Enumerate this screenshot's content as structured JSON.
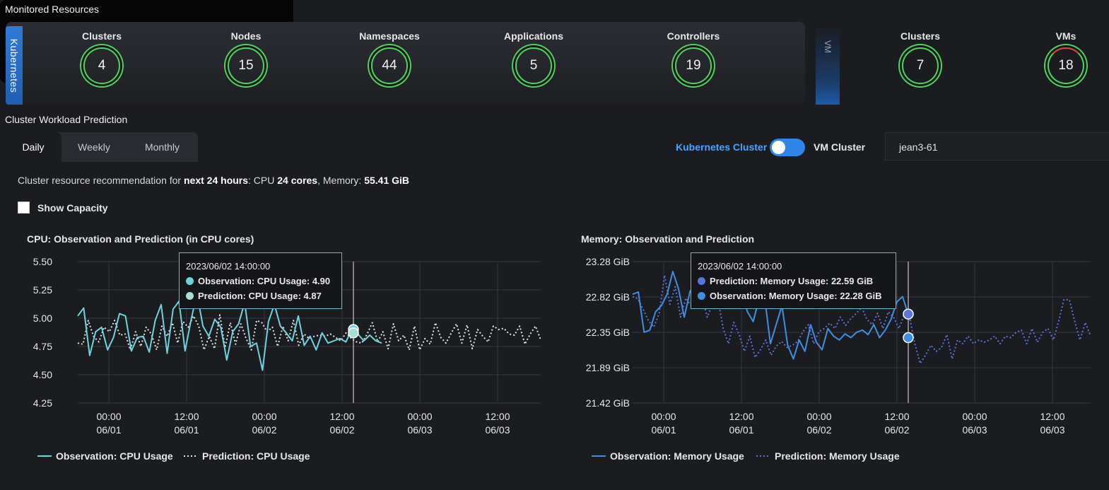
{
  "header": {
    "title": "Monitored Resources"
  },
  "kubernetes": {
    "tab_label": "Kubernetes",
    "stats": [
      {
        "label": "Clusters",
        "value": "4"
      },
      {
        "label": "Nodes",
        "value": "15"
      },
      {
        "label": "Namespaces",
        "value": "44"
      },
      {
        "label": "Applications",
        "value": "5"
      },
      {
        "label": "Controllers",
        "value": "19"
      }
    ]
  },
  "vm": {
    "tab_label": "VM",
    "stats": [
      {
        "label": "Clusters",
        "value": "7"
      },
      {
        "label": "VMs",
        "value": "18"
      }
    ]
  },
  "prediction": {
    "title": "Cluster Workload Prediction",
    "tabs": [
      "Daily",
      "Weekly",
      "Monthly"
    ],
    "active_tab": "Daily",
    "toggle_left": "Kubernetes Cluster",
    "toggle_right": "VM Cluster",
    "cluster_select": "jean3-61",
    "recommendation": {
      "prefix": "Cluster resource recommendation for ",
      "window": "next 24 hours",
      "cpu_prefix": ": CPU ",
      "cpu": "24 cores",
      "mem_prefix": ", Memory: ",
      "memory": "55.41 GiB"
    },
    "show_capacity": "Show Capacity"
  },
  "colors": {
    "cpu_obs": "#6fd3dc",
    "cpu_pred": "#dfe3e6",
    "mem_obs": "#3f8fe0",
    "mem_pred": "#5b74d8",
    "ring": "#4cd35a",
    "accent": "#2f86e6"
  },
  "chart_data": [
    {
      "type": "line",
      "title": "CPU: Observation and Prediction (in CPU cores)",
      "y_ticks": [
        "5.50",
        "5.25",
        "5.00",
        "4.75",
        "4.50",
        "4.25"
      ],
      "ylim": [
        4.25,
        5.5
      ],
      "x_ticks": [
        {
          "time": "00:00",
          "date": "06/01"
        },
        {
          "time": "12:00",
          "date": "06/01"
        },
        {
          "time": "00:00",
          "date": "06/02"
        },
        {
          "time": "12:00",
          "date": "06/02"
        },
        {
          "time": "00:00",
          "date": "06/03"
        },
        {
          "time": "12:00",
          "date": "06/03"
        }
      ],
      "series": [
        {
          "name": "Observation: CPU Usage",
          "style": "solid",
          "values": [
            5.02,
            5.09,
            4.67,
            4.88,
            4.92,
            4.72,
            4.83,
            5.04,
            5.02,
            4.71,
            4.83,
            4.84,
            4.7,
            4.98,
            5.12,
            4.69,
            5.08,
            5.15,
            4.71,
            4.98,
            5.22,
            4.93,
            4.84,
            4.99,
            4.92,
            4.63,
            4.88,
            4.95,
            5.14,
            4.75,
            4.78,
            4.54,
            4.97,
            5.12,
            4.93,
            4.87,
            4.8,
            5.02,
            4.76,
            4.84,
            4.72,
            4.87,
            4.78,
            4.8,
            4.82,
            4.79,
            4.9,
            4.86,
            4.8,
            4.85,
            4.8,
            4.78
          ]
        },
        {
          "name": "Prediction: CPU Usage",
          "style": "dotted",
          "values": [
            4.78,
            4.77,
            4.98,
            4.84,
            4.79,
            4.92,
            4.88,
            4.98,
            4.85,
            4.86,
            4.72,
            4.88,
            4.75,
            4.92,
            4.86,
            4.72,
            4.93,
            4.84,
            4.96,
            4.78,
            4.97,
            4.92,
            5.02,
            4.93,
            4.72,
            4.84,
            4.73,
            5.03,
            4.74,
            4.96,
            4.77,
            4.95,
            4.82,
            4.72,
            4.98,
            4.96,
            4.88,
            4.92,
            4.75,
            4.93,
            4.8,
            4.98,
            4.76,
            4.86,
            4.82,
            4.84,
            4.85,
            4.84,
            4.86,
            4.83,
            4.8,
            4.87,
            4.82,
            4.79,
            4.78,
            4.86,
            4.96,
            4.79,
            4.88,
            4.73,
            4.95,
            4.8,
            4.85,
            4.72,
            4.93,
            4.72,
            4.82,
            4.77,
            4.96,
            4.83,
            4.78,
            4.87,
            4.95,
            4.78,
            4.94,
            4.73,
            4.9,
            4.84,
            4.79,
            4.93,
            4.9,
            4.91,
            4.86,
            4.85,
            4.93,
            4.77,
            4.86,
            4.93,
            4.81
          ]
        }
      ],
      "tooltip": {
        "time": "2023/06/02 14:00:00",
        "rows": [
          {
            "label": "Observation: CPU Usage: ",
            "value": "4.90"
          },
          {
            "label": "Prediction: CPU Usage: ",
            "value": "4.87"
          }
        ]
      },
      "legend": [
        "Observation: CPU Usage",
        "Prediction: CPU Usage"
      ],
      "grid": true
    },
    {
      "type": "line",
      "title": "Memory: Observation and Prediction",
      "y_ticks": [
        "23.28 GiB",
        "22.82 GiB",
        "22.35 GiB",
        "21.89 GiB",
        "21.42 GiB"
      ],
      "ylim": [
        21.42,
        23.28
      ],
      "x_ticks": [
        {
          "time": "00:00",
          "date": "06/01"
        },
        {
          "time": "12:00",
          "date": "06/01"
        },
        {
          "time": "00:00",
          "date": "06/02"
        },
        {
          "time": "12:00",
          "date": "06/02"
        },
        {
          "time": "00:00",
          "date": "06/03"
        },
        {
          "time": "12:00",
          "date": "06/03"
        }
      ],
      "series": [
        {
          "name": "Observation: Memory Usage",
          "style": "solid",
          "values": [
            22.85,
            22.88,
            22.35,
            22.38,
            22.62,
            22.7,
            22.85,
            23.15,
            22.92,
            22.55,
            22.89,
            22.96,
            22.7,
            22.75,
            22.68,
            22.78,
            22.72,
            22.8,
            22.7,
            22.85,
            22.62,
            22.49,
            22.79,
            22.8,
            22.2,
            22.45,
            22.7,
            22.18,
            22.0,
            22.25,
            22.1,
            22.45,
            22.22,
            22.12,
            22.4,
            22.3,
            22.25,
            22.33,
            22.28,
            22.35,
            22.38,
            22.32,
            22.45,
            22.28,
            22.38,
            22.52,
            22.75,
            22.82,
            22.59
          ]
        },
        {
          "name": "Prediction: Memory Usage",
          "style": "dotted",
          "values": [
            22.82,
            22.79,
            22.65,
            22.5,
            22.42,
            22.6,
            23.1,
            22.72,
            22.95,
            22.55,
            22.8,
            22.7,
            22.78,
            22.85,
            22.55,
            22.72,
            22.8,
            22.4,
            22.2,
            22.48,
            22.32,
            22.1,
            22.3,
            22.02,
            22.12,
            22.25,
            22.05,
            22.17,
            22.23,
            22.15,
            22.18,
            22.23,
            22.36,
            22.45,
            22.2,
            22.36,
            22.4,
            22.47,
            22.4,
            22.55,
            22.44,
            22.53,
            22.6,
            22.68,
            22.52,
            22.45,
            22.6,
            22.4,
            22.62,
            22.55,
            22.4,
            22.58,
            22.55,
            22.2,
            21.94,
            22.05,
            22.18,
            22.1,
            22.15,
            22.32,
            22.0,
            22.25,
            22.2,
            22.3,
            22.2,
            22.25,
            22.22,
            22.25,
            22.3,
            22.2,
            22.3,
            22.28,
            22.35,
            22.38,
            22.2,
            22.4,
            22.22,
            22.35,
            22.4,
            22.25,
            22.5,
            22.78,
            22.78,
            22.5,
            22.25,
            22.48,
            22.3
          ]
        }
      ],
      "tooltip": {
        "time": "2023/06/02 14:00:00",
        "rows": [
          {
            "label": "Prediction: Memory Usage: ",
            "value": "22.59 GiB"
          },
          {
            "label": "Observation: Memory Usage: ",
            "value": "22.28 GiB"
          }
        ]
      },
      "legend": [
        "Observation: Memory Usage",
        "Prediction: Memory Usage"
      ],
      "grid": true
    }
  ]
}
